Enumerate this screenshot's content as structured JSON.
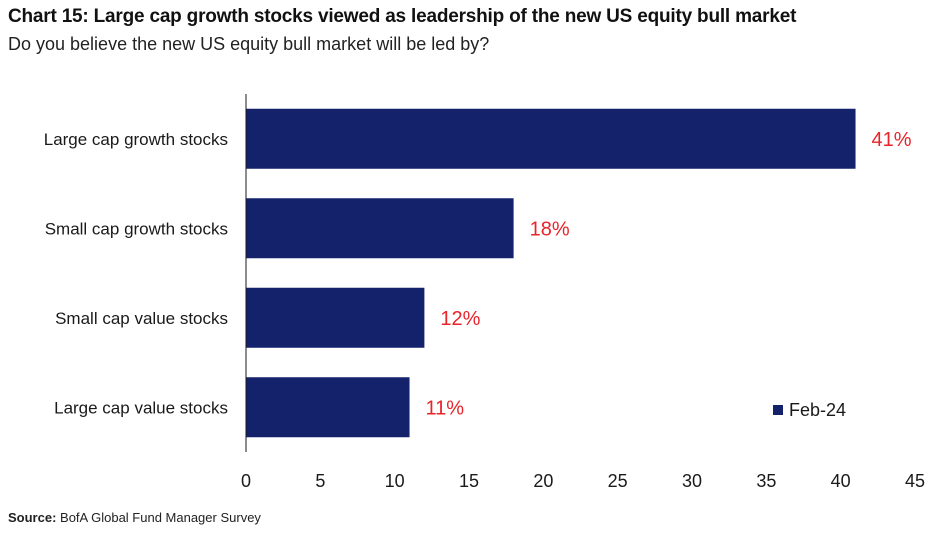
{
  "title": "Chart 15: Large cap growth stocks viewed as leadership of the new US equity bull market",
  "subtitle": "Do you believe the new US equity bull market will be led by?",
  "source": {
    "label": "Source:",
    "text": "BofA Global Fund Manager Survey"
  },
  "colors": {
    "bar": "#14216b",
    "data_label": "#e8242a",
    "axis": "#1a1a1a",
    "text": "#1a1a1a"
  },
  "chart_data": {
    "type": "bar",
    "orientation": "horizontal",
    "categories": [
      "Large cap growth stocks",
      "Small cap growth stocks",
      "Small cap value stocks",
      "Large cap value stocks"
    ],
    "series": [
      {
        "name": "Feb-24",
        "values": [
          41,
          18,
          12,
          11
        ]
      }
    ],
    "data_labels": [
      "41%",
      "18%",
      "12%",
      "11%"
    ],
    "xlim": [
      0,
      45
    ],
    "xticks": [
      0,
      5,
      10,
      15,
      20,
      25,
      30,
      35,
      40,
      45
    ],
    "xtick_labels": [
      "0",
      "5",
      "10",
      "15",
      "20",
      "25",
      "30",
      "35",
      "40",
      "45"
    ],
    "grid": false,
    "legend_position": "bottom-right"
  }
}
